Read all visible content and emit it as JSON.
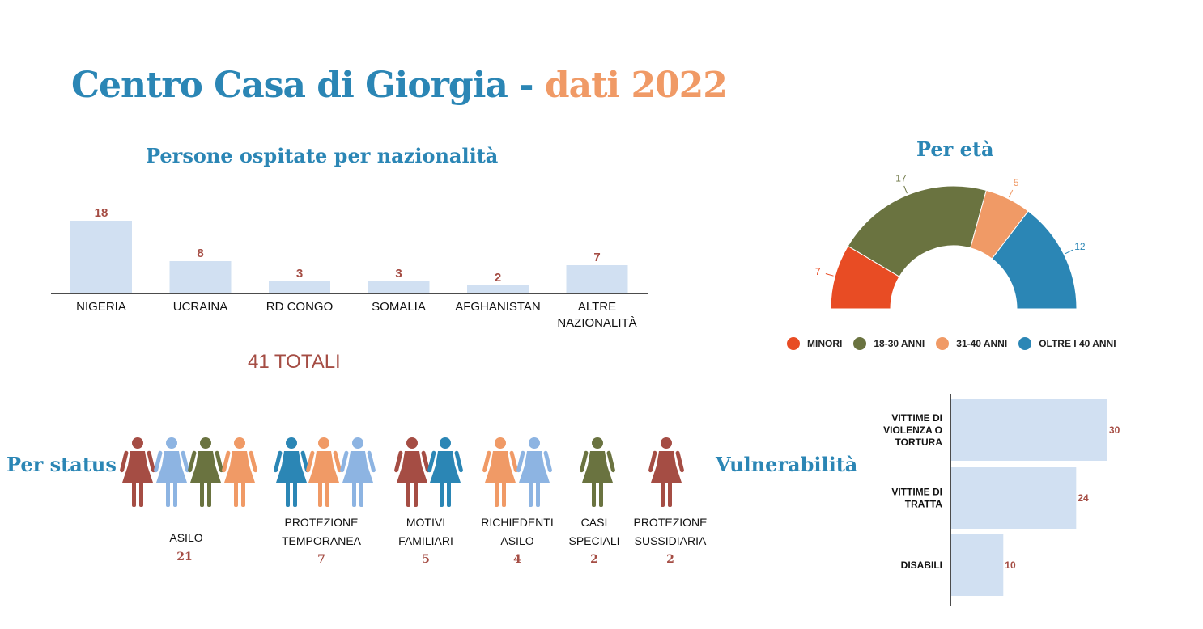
{
  "title": {
    "part1": "Centro Casa di Giorgia - ",
    "part2": "dati 2022"
  },
  "colors": {
    "blue": "#2b86b5",
    "orange": "#f09a66",
    "red": "#a54d44",
    "bar": "#d1e0f2",
    "minori": "#e84c24",
    "age18_30": "#6a7340",
    "age31_40": "#f09a66",
    "over40": "#2b86b5",
    "lightblue": "#8db4e2"
  },
  "totali": "41 TOTALI",
  "chart_data": [
    {
      "type": "bar",
      "title": "Persone ospitate per nazionalità",
      "categories": [
        "NIGERIA",
        "UCRAINA",
        "RD CONGO",
        "SOMALIA",
        "AFGHANISTAN",
        "ALTRE NAZIONALITÀ"
      ],
      "values": [
        18,
        8,
        3,
        3,
        2,
        7
      ]
    },
    {
      "type": "pie",
      "title": "Per età",
      "subtype": "semi-donut",
      "categories": [
        "MINORI",
        "18-30 ANNI",
        "31-40 ANNI",
        "OLTRE I 40 ANNI"
      ],
      "values": [
        7,
        17,
        5,
        12
      ],
      "legend": "bottom"
    },
    {
      "type": "bar",
      "orientation": "horizontal",
      "title": "Vulnerabilità",
      "categories": [
        "VITTIME DI VIOLENZA O TORTURA",
        "VITTIME DI TRATTA",
        "DISABILI"
      ],
      "values": [
        30,
        24,
        10
      ]
    }
  ],
  "status": {
    "title": "Per status",
    "groups": [
      {
        "label": "ASILO",
        "count": "21",
        "icon": "person-icon"
      },
      {
        "label": "PROTEZIONE TEMPORANEA",
        "count": "7",
        "icon": "person-icon"
      },
      {
        "label": "MOTIVI FAMILIARI",
        "count": "5",
        "icon": "person-icon"
      },
      {
        "label": "RICHIEDENTI ASILO",
        "count": "4",
        "icon": "person-icon"
      },
      {
        "label": "CASI SPECIALI",
        "count": "2",
        "icon": "person-icon"
      },
      {
        "label": "PROTEZIONE SUSSIDIARIA",
        "count": "2",
        "icon": "person-icon"
      }
    ]
  }
}
